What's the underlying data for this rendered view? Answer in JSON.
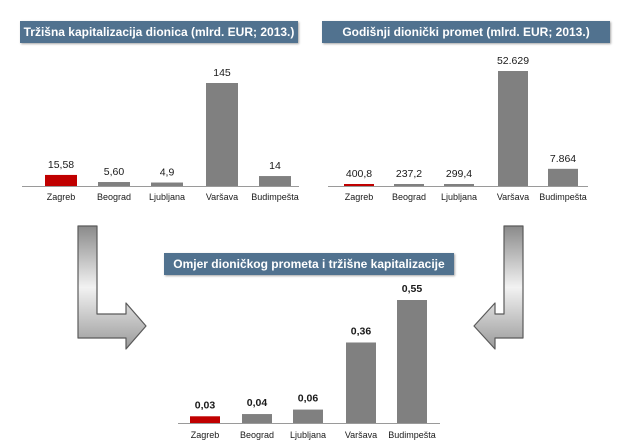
{
  "chart_data": [
    {
      "type": "bar",
      "title": "Tržišna kapitalizacija dionica (mlrd. EUR; 2013.)",
      "categories": [
        "Zagreb",
        "Beograd",
        "Ljubljana",
        "Varšava",
        "Budimpešta"
      ],
      "values": [
        15.58,
        5.6,
        4.9,
        145,
        14
      ],
      "value_labels": [
        "15,58",
        "5,60",
        "4,9",
        "145",
        "14"
      ],
      "highlight_index": 0,
      "ylim": [
        0,
        145
      ]
    },
    {
      "type": "bar",
      "title": "Godišnji dionički promet (mlrd. EUR; 2013.)",
      "categories": [
        "Zagreb",
        "Beograd",
        "Ljubljana",
        "Varšava",
        "Budimpešta"
      ],
      "values": [
        400.8,
        237.2,
        299.4,
        52629,
        7864
      ],
      "value_labels": [
        "400,8",
        "237,2",
        "299,4",
        "52.629",
        "7.864"
      ],
      "highlight_index": 0,
      "ylim": [
        0,
        52629
      ]
    },
    {
      "type": "bar",
      "title": "Omjer dioničkog prometa i tržišne kapitalizacije",
      "categories": [
        "Zagreb",
        "Beograd",
        "Ljubljana",
        "Varšava",
        "Budimpešta"
      ],
      "values": [
        0.03,
        0.04,
        0.06,
        0.36,
        0.55
      ],
      "value_labels": [
        "0,03",
        "0,04",
        "0,06",
        "0,36",
        "0,55"
      ],
      "highlight_index": 0,
      "ylim": [
        0,
        0.55
      ]
    }
  ],
  "colors": {
    "highlight": "#c00000",
    "bar": "#808080",
    "banner": "#51728f",
    "arrow": "#b0b0b0"
  }
}
